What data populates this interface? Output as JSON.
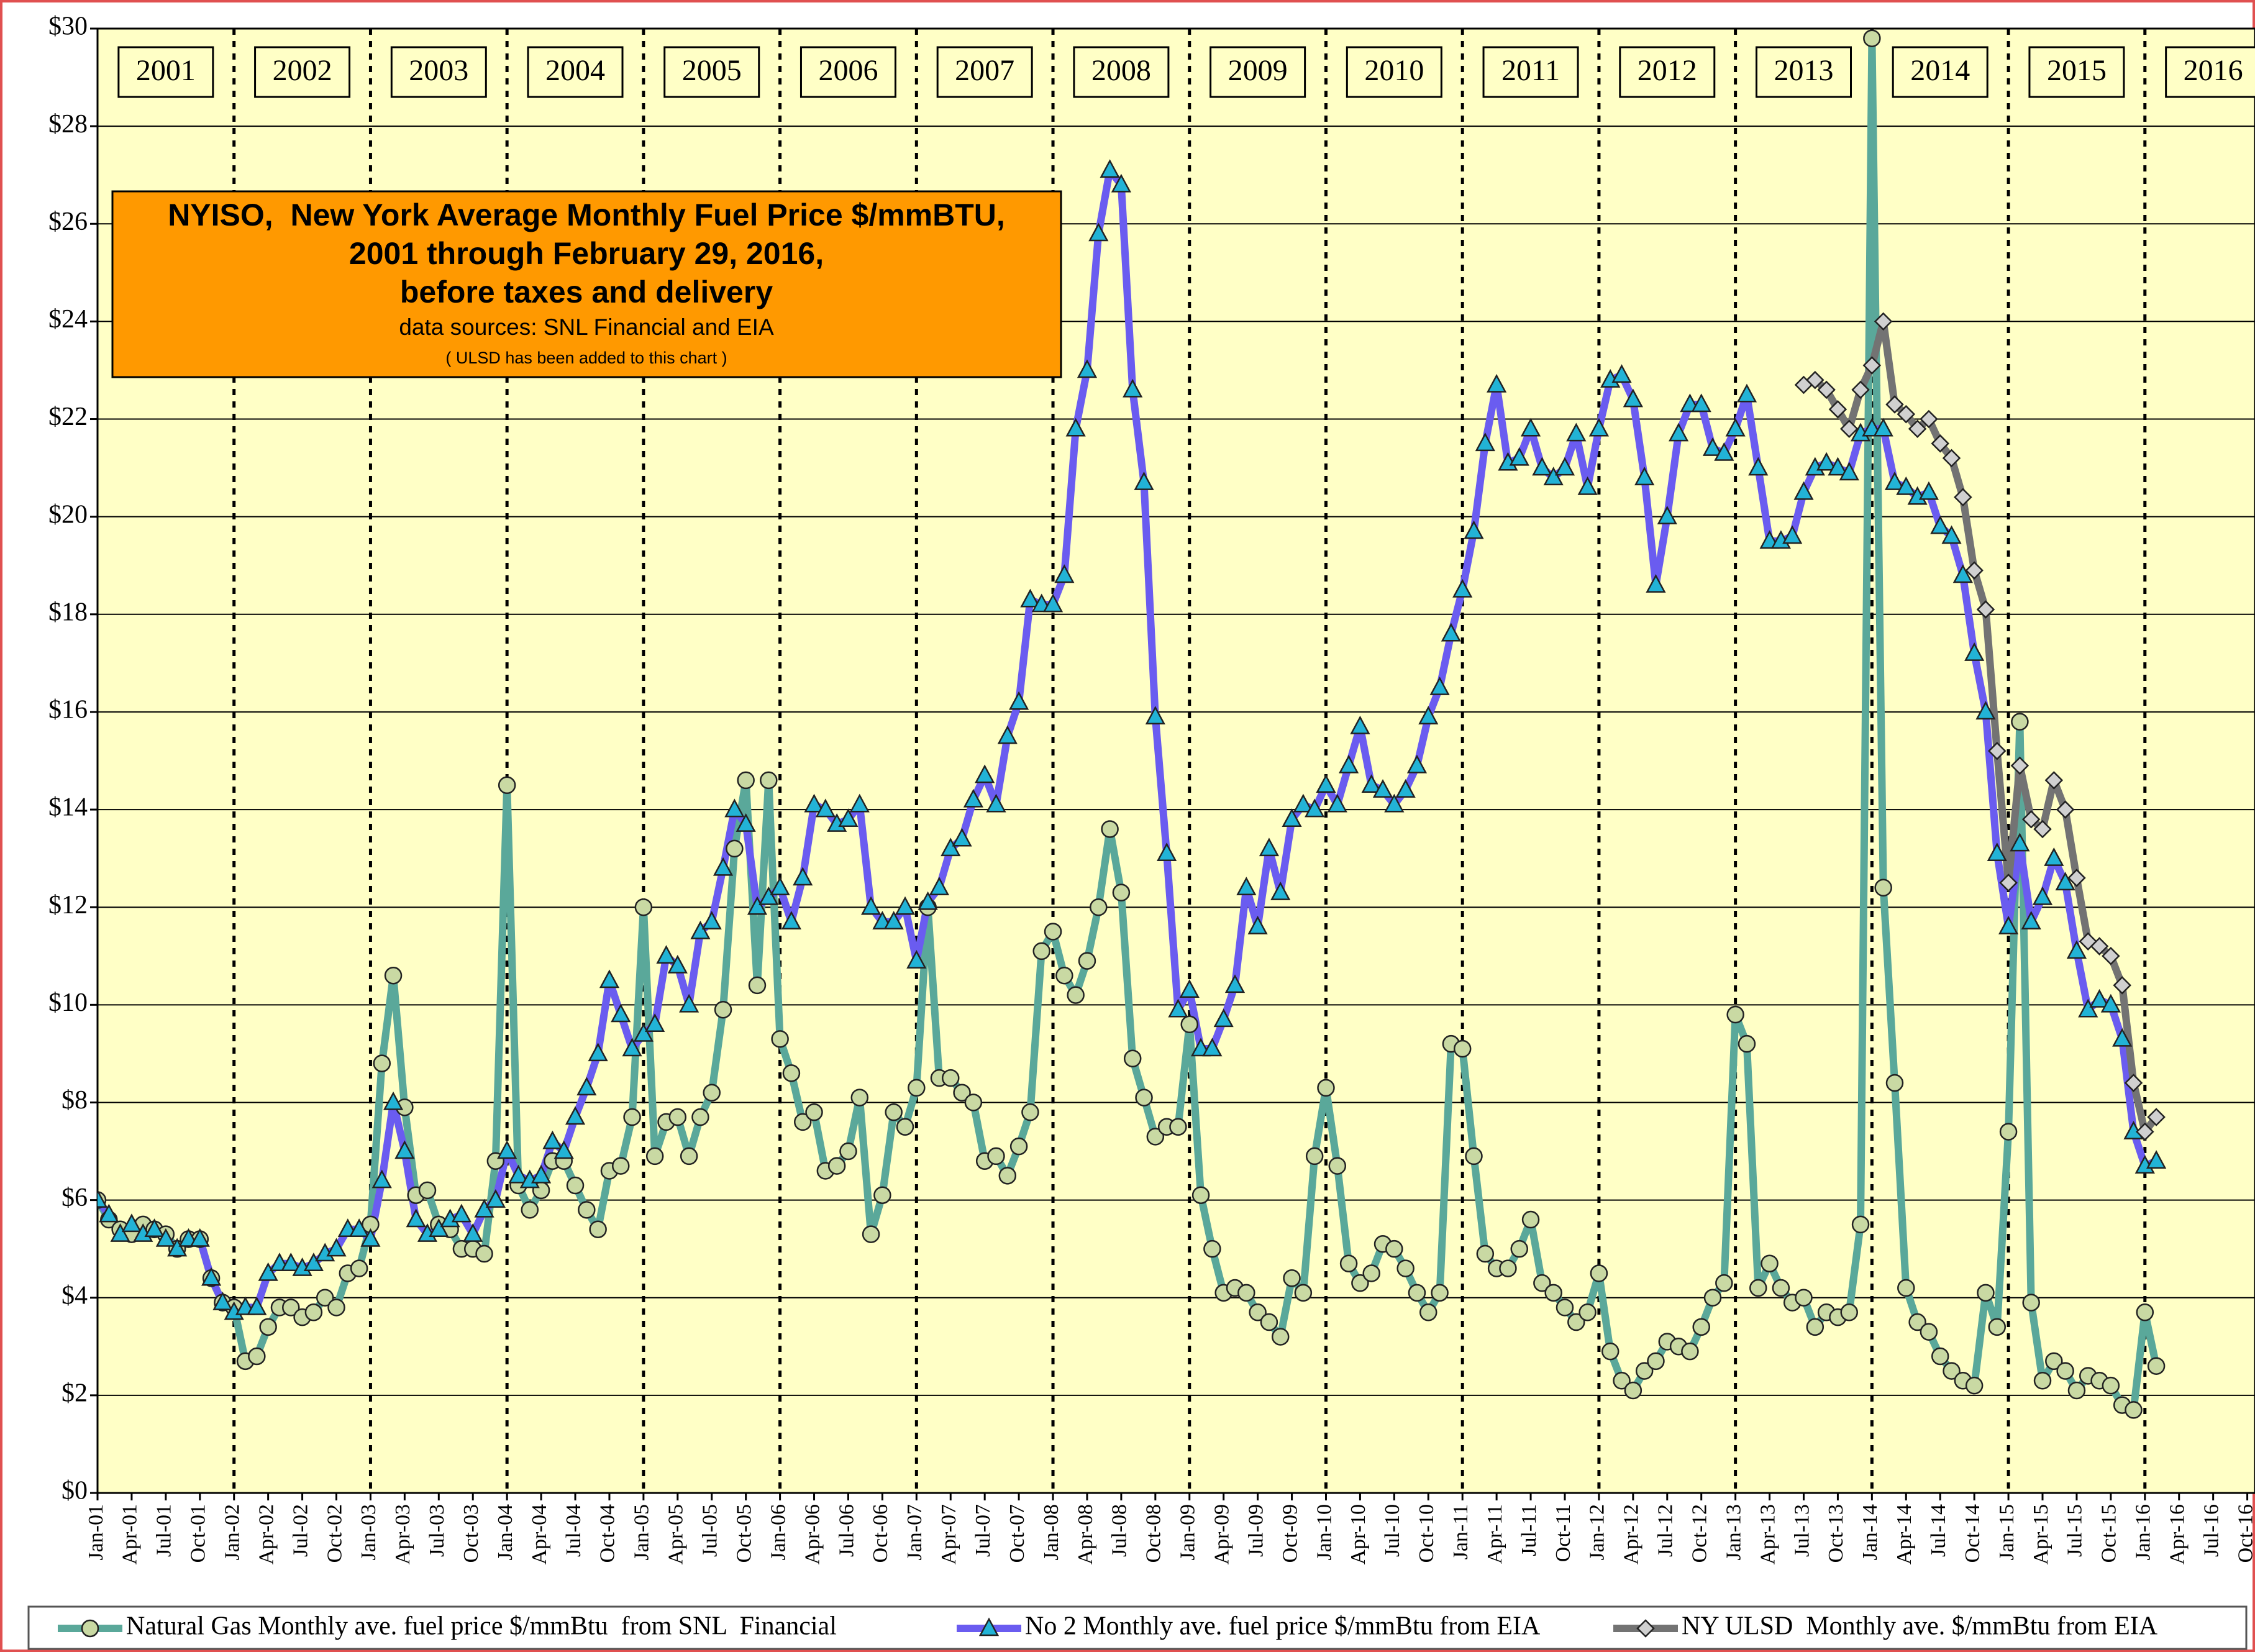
{
  "chart_data": {
    "type": "line",
    "title": [
      "NYISO,  New York Average Monthly Fuel Price $/mmBTU,",
      "2001 through February 29, 2016,",
      "before taxes and delivery"
    ],
    "subtitle": "data sources: SNL Financial and EIA",
    "note": "( ULSD has been added to this chart )",
    "year_labels": [
      "2001",
      "2002",
      "2003",
      "2004",
      "2005",
      "2006",
      "2007",
      "2008",
      "2009",
      "2010",
      "2011",
      "2012",
      "2013",
      "2014",
      "2015",
      "2016"
    ],
    "categories": [
      "Jan-01",
      null,
      null,
      "Apr-01",
      null,
      null,
      "Jul-01",
      null,
      null,
      "Oct-01",
      null,
      null,
      "Jan-02",
      null,
      null,
      "Apr-02",
      null,
      null,
      "Jul-02",
      null,
      null,
      "Oct-02",
      null,
      null,
      "Jan-03",
      null,
      null,
      "Apr-03",
      null,
      null,
      "Jul-03",
      null,
      null,
      "Oct-03",
      null,
      null,
      "Jan-04",
      null,
      null,
      "Apr-04",
      null,
      null,
      "Jul-04",
      null,
      null,
      "Oct-04",
      null,
      null,
      "Jan-05",
      null,
      null,
      "Apr-05",
      null,
      null,
      "Jul-05",
      null,
      null,
      "Oct-05",
      null,
      null,
      "Jan-06",
      null,
      null,
      "Apr-06",
      null,
      null,
      "Jul-06",
      null,
      null,
      "Oct-06",
      null,
      null,
      "Jan-07",
      null,
      null,
      "Apr-07",
      null,
      null,
      "Jul-07",
      null,
      null,
      "Oct-07",
      null,
      null,
      "Jan-08",
      null,
      null,
      "Apr-08",
      null,
      null,
      "Jul-08",
      null,
      null,
      "Oct-08",
      null,
      null,
      "Jan-09",
      null,
      null,
      "Apr-09",
      null,
      null,
      "Jul-09",
      null,
      null,
      "Oct-09",
      null,
      null,
      "Jan-10",
      null,
      null,
      "Apr-10",
      null,
      null,
      "Jul-10",
      null,
      null,
      "Oct-10",
      null,
      null,
      "Jan-11",
      null,
      null,
      "Apr-11",
      null,
      null,
      "Jul-11",
      null,
      null,
      "Oct-11",
      null,
      null,
      "Jan-12",
      null,
      null,
      "Apr-12",
      null,
      null,
      "Jul-12",
      null,
      null,
      "Oct-12",
      null,
      null,
      "Jan-13",
      null,
      null,
      "Apr-13",
      null,
      null,
      "Jul-13",
      null,
      null,
      "Oct-13",
      null,
      null,
      "Jan-14",
      null,
      null,
      "Apr-14",
      null,
      null,
      "Jul-14",
      null,
      null,
      "Oct-14",
      null,
      null,
      "Jan-15",
      null,
      null,
      "Apr-15",
      null,
      null,
      "Jul-15",
      null,
      null,
      "Oct-15",
      null,
      null,
      "Jan-16",
      null,
      null,
      "Apr-16",
      null,
      null,
      "Jul-16",
      null,
      null,
      "Oct-16"
    ],
    "series": [
      {
        "name": "Natural Gas Monthly ave. fuel price $/mmBtu  from SNL  Financial",
        "color": "#5aa89a",
        "marker": "circle",
        "marker_fill": "#c9d9a3",
        "values": [
          6.0,
          5.6,
          5.4,
          5.3,
          5.5,
          5.4,
          5.3,
          5.0,
          5.2,
          5.2,
          4.4,
          3.9,
          3.8,
          2.7,
          2.8,
          3.4,
          3.8,
          3.8,
          3.6,
          3.7,
          4.0,
          3.8,
          4.5,
          4.6,
          5.5,
          8.8,
          10.6,
          7.9,
          6.1,
          6.2,
          5.5,
          5.4,
          5.0,
          5.0,
          4.9,
          6.8,
          14.5,
          6.3,
          5.8,
          6.2,
          6.8,
          6.8,
          6.3,
          5.8,
          5.4,
          6.6,
          6.7,
          7.7,
          12.0,
          6.9,
          7.6,
          7.7,
          6.9,
          7.7,
          8.2,
          9.9,
          13.2,
          14.6,
          10.4,
          14.6,
          9.3,
          8.6,
          7.6,
          7.8,
          6.6,
          6.7,
          7.0,
          8.1,
          5.3,
          6.1,
          7.8,
          7.5,
          8.3,
          12.0,
          8.5,
          8.5,
          8.2,
          8.0,
          6.8,
          6.9,
          6.5,
          7.1,
          7.8,
          11.1,
          11.5,
          10.6,
          10.2,
          10.9,
          12.0,
          13.6,
          12.3,
          8.9,
          8.1,
          7.3,
          7.5,
          7.5,
          9.6,
          6.1,
          5.0,
          4.1,
          4.2,
          4.1,
          3.7,
          3.5,
          3.2,
          4.4,
          4.1,
          6.9,
          8.3,
          6.7,
          4.7,
          4.3,
          4.5,
          5.1,
          5.0,
          4.6,
          4.1,
          3.7,
          4.1,
          9.2,
          9.1,
          6.9,
          4.9,
          4.6,
          4.6,
          5.0,
          5.6,
          4.3,
          4.1,
          3.8,
          3.5,
          3.7,
          4.5,
          2.9,
          2.3,
          2.1,
          2.5,
          2.7,
          3.1,
          3.0,
          2.9,
          3.4,
          4.0,
          4.3,
          9.8,
          9.2,
          4.2,
          4.7,
          4.2,
          3.9,
          4.0,
          3.4,
          3.7,
          3.6,
          3.7,
          5.5,
          29.8,
          12.4,
          8.4,
          4.2,
          3.5,
          3.3,
          2.8,
          2.5,
          2.3,
          2.2,
          4.1,
          3.4,
          7.4,
          15.8,
          3.9,
          2.3,
          2.7,
          2.5,
          2.1,
          2.4,
          2.3,
          2.2,
          1.8,
          1.7,
          3.7,
          2.6,
          null,
          null,
          null,
          null,
          null,
          null,
          null,
          null
        ]
      },
      {
        "name": "No 2 Monthly ave. fuel price $/mmBtu from EIA",
        "color": "#6a5cf0",
        "marker": "triangle",
        "marker_fill": "#22b3d6",
        "values": [
          6.0,
          5.7,
          5.3,
          5.5,
          5.3,
          5.4,
          5.2,
          5.0,
          5.2,
          5.2,
          4.4,
          3.9,
          3.7,
          3.8,
          3.8,
          4.5,
          4.7,
          4.7,
          4.6,
          4.7,
          4.9,
          5.0,
          5.4,
          5.4,
          5.2,
          6.4,
          8.0,
          7.0,
          5.6,
          5.3,
          5.4,
          5.6,
          5.7,
          5.3,
          5.8,
          6.0,
          7.0,
          6.5,
          6.4,
          6.5,
          7.2,
          7.0,
          7.7,
          8.3,
          9.0,
          10.5,
          9.8,
          9.1,
          9.4,
          9.6,
          11.0,
          10.8,
          10.0,
          11.5,
          11.7,
          12.8,
          14.0,
          13.7,
          12.0,
          12.2,
          12.4,
          11.7,
          12.6,
          14.1,
          14.0,
          13.7,
          13.8,
          14.1,
          12.0,
          11.7,
          11.7,
          12.0,
          10.9,
          12.1,
          12.4,
          13.2,
          13.4,
          14.2,
          14.7,
          14.1,
          15.5,
          16.2,
          18.3,
          18.2,
          18.2,
          18.8,
          21.8,
          23.0,
          25.8,
          27.1,
          26.8,
          22.6,
          20.7,
          15.9,
          13.1,
          9.9,
          10.3,
          9.1,
          9.1,
          9.7,
          10.4,
          12.4,
          11.6,
          13.2,
          12.3,
          13.8,
          14.1,
          14.0,
          14.5,
          14.1,
          14.9,
          15.7,
          14.5,
          14.4,
          14.1,
          14.4,
          14.9,
          15.9,
          16.5,
          17.6,
          18.5,
          19.7,
          21.5,
          22.7,
          21.1,
          21.2,
          21.8,
          21.0,
          20.8,
          21.0,
          21.7,
          20.6,
          21.8,
          22.8,
          22.9,
          22.4,
          20.8,
          18.6,
          20.0,
          21.7,
          22.3,
          22.3,
          21.4,
          21.3,
          21.8,
          22.5,
          21.0,
          19.5,
          19.5,
          19.6,
          20.5,
          21.0,
          21.1,
          21.0,
          20.9,
          21.7,
          21.8,
          21.8,
          20.7,
          20.6,
          20.4,
          20.5,
          19.8,
          19.6,
          18.8,
          17.2,
          16.0,
          13.1,
          11.6,
          13.3,
          11.7,
          12.2,
          13.0,
          12.5,
          11.1,
          9.9,
          10.1,
          10.0,
          9.3,
          7.4,
          6.7,
          6.8,
          null,
          null,
          null,
          null,
          null,
          null,
          null,
          null
        ]
      },
      {
        "name": "NY ULSD  Monthly ave. $/mmBtu from EIA",
        "color": "#737373",
        "marker": "diamond",
        "marker_fill": "#d0d0d0",
        "values": [
          null,
          null,
          null,
          null,
          null,
          null,
          null,
          null,
          null,
          null,
          null,
          null,
          null,
          null,
          null,
          null,
          null,
          null,
          null,
          null,
          null,
          null,
          null,
          null,
          null,
          null,
          null,
          null,
          null,
          null,
          null,
          null,
          null,
          null,
          null,
          null,
          null,
          null,
          null,
          null,
          null,
          null,
          null,
          null,
          null,
          null,
          null,
          null,
          null,
          null,
          null,
          null,
          null,
          null,
          null,
          null,
          null,
          null,
          null,
          null,
          null,
          null,
          null,
          null,
          null,
          null,
          null,
          null,
          null,
          null,
          null,
          null,
          null,
          null,
          null,
          null,
          null,
          null,
          null,
          null,
          null,
          null,
          null,
          null,
          null,
          null,
          null,
          null,
          null,
          null,
          null,
          null,
          null,
          null,
          null,
          null,
          null,
          null,
          null,
          null,
          null,
          null,
          null,
          null,
          null,
          null,
          null,
          null,
          null,
          null,
          null,
          null,
          null,
          null,
          null,
          null,
          null,
          null,
          null,
          null,
          null,
          null,
          null,
          null,
          null,
          null,
          null,
          null,
          null,
          null,
          null,
          null,
          null,
          null,
          null,
          null,
          null,
          null,
          null,
          null,
          null,
          null,
          null,
          null,
          null,
          null,
          null,
          null,
          null,
          null,
          22.7,
          22.8,
          22.6,
          22.2,
          21.8,
          22.6,
          23.1,
          24.0,
          22.3,
          22.1,
          21.8,
          22.0,
          21.5,
          21.2,
          20.4,
          18.9,
          18.1,
          15.2,
          12.5,
          14.9,
          13.8,
          13.6,
          14.6,
          14.0,
          12.6,
          11.3,
          11.2,
          11.0,
          10.4,
          8.4,
          7.4,
          7.7,
          null,
          null,
          null,
          null,
          null,
          null,
          null,
          null
        ]
      }
    ],
    "ylim": [
      0,
      30
    ],
    "yticks": [
      {
        "value": 0,
        "label": "$0"
      },
      {
        "value": 2,
        "label": "$2"
      },
      {
        "value": 4,
        "label": "$4"
      },
      {
        "value": 6,
        "label": "$6"
      },
      {
        "value": 8,
        "label": "$8"
      },
      {
        "value": 10,
        "label": "$10"
      },
      {
        "value": 12,
        "label": "$12"
      },
      {
        "value": 14,
        "label": "$14"
      },
      {
        "value": 16,
        "label": "$16"
      },
      {
        "value": 18,
        "label": "$18"
      },
      {
        "value": 20,
        "label": "$20"
      },
      {
        "value": 22,
        "label": "$22"
      },
      {
        "value": 24,
        "label": "$24"
      },
      {
        "value": 26,
        "label": "$26"
      },
      {
        "value": 28,
        "label": "$28"
      },
      {
        "value": 30,
        "label": "$30"
      }
    ],
    "grid": true,
    "legend": "bottom"
  }
}
